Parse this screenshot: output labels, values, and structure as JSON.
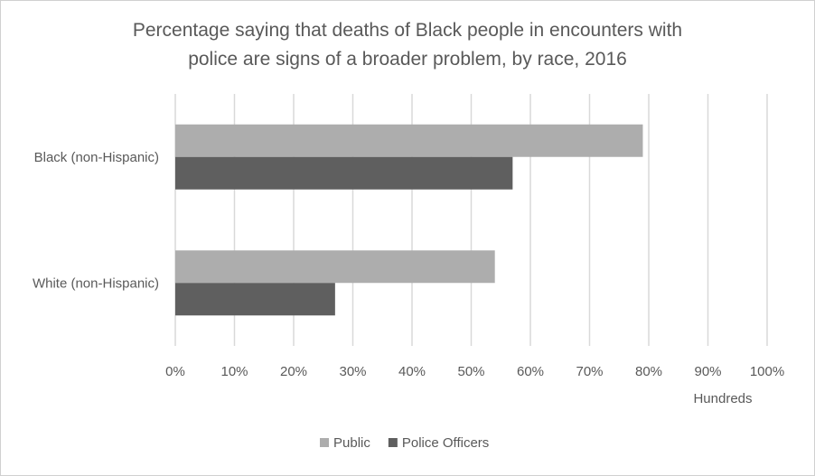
{
  "chart_data": {
    "type": "bar",
    "orientation": "horizontal",
    "title_line1": "Percentage saying that deaths of Black people in encounters with",
    "title_line2": "police are signs of a broader problem, by race, 2016",
    "categories": [
      "Black (non-Hispanic)",
      "White (non-Hispanic)"
    ],
    "series": [
      {
        "name": "Public",
        "values": [
          0.79,
          0.54
        ],
        "color": "#adadad"
      },
      {
        "name": "Police Officers",
        "values": [
          0.57,
          0.27
        ],
        "color": "#5f5f5f"
      }
    ],
    "xlim": [
      0,
      1
    ],
    "x_ticks": [
      "0%",
      "10%",
      "20%",
      "30%",
      "40%",
      "50%",
      "60%",
      "70%",
      "80%",
      "90%",
      "100%"
    ],
    "x_unit_label": "Hundreds",
    "grid": true,
    "legend_position": "bottom",
    "gridline_color": "#d9d9d9"
  }
}
